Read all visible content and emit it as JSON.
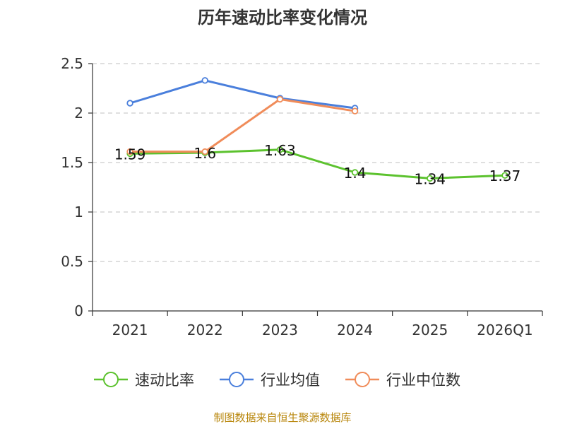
{
  "chart_data": {
    "type": "line",
    "title": "历年速动比率变化情况",
    "categories": [
      "2021",
      "2022",
      "2023",
      "2024",
      "2025",
      "2026Q1"
    ],
    "y_ticks": [
      "0",
      "0.5",
      "1",
      "1.5",
      "2",
      "2.5"
    ],
    "ylim": [
      0,
      2.5
    ],
    "grid": true,
    "legend_position": "bottom",
    "series": [
      {
        "name": "速动比率",
        "color": "#5cc22e",
        "values": [
          1.59,
          1.6,
          1.63,
          1.4,
          1.34,
          1.37
        ],
        "labels": [
          "1.59",
          "1.6",
          "1.63",
          "1.4",
          "1.34",
          "1.37"
        ]
      },
      {
        "name": "行业均值",
        "color": "#4a7fdc",
        "values": [
          2.1,
          2.33,
          2.15,
          2.05,
          null,
          null
        ]
      },
      {
        "name": "行业中位数",
        "color": "#f08c5a",
        "values": [
          1.61,
          1.61,
          2.14,
          2.02,
          null,
          null
        ]
      }
    ]
  },
  "source": "制图数据来自恒生聚源数据库"
}
